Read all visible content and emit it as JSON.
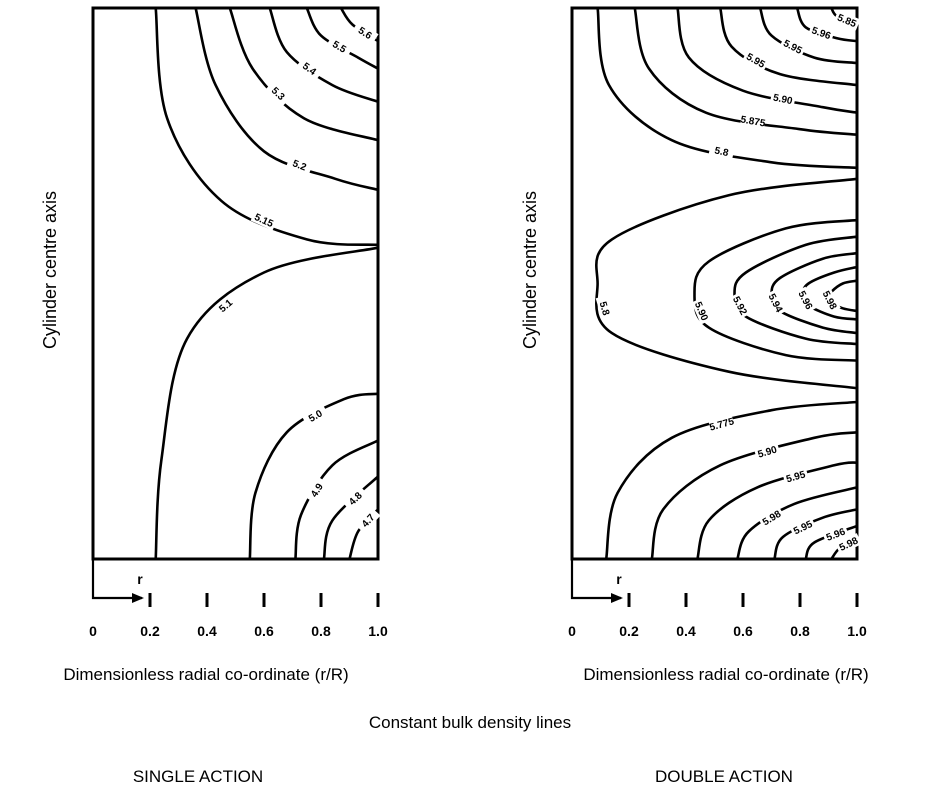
{
  "figure": {
    "caption": "Constant bulk density lines",
    "arrow_label": "r"
  },
  "chart_data": [
    {
      "type": "contour",
      "panel_title": "SINGLE ACTION",
      "ylabel": "Cylinder centre axis",
      "xlabel": "Dimensionless radial co-ordinate (r/R)",
      "xlim": [
        0,
        1.0
      ],
      "xticks": [
        "0",
        "0.2",
        "0.4",
        "0.6",
        "0.8",
        "1.0"
      ],
      "contours": [
        {
          "label": "5.15",
          "pts": [
            [
              0.22,
              1.0
            ],
            [
              0.26,
              0.8
            ],
            [
              0.45,
              0.65
            ],
            [
              0.75,
              0.58
            ],
            [
              1.0,
              0.57
            ]
          ]
        },
        {
          "label": "5.2",
          "pts": [
            [
              0.36,
              1.0
            ],
            [
              0.43,
              0.86
            ],
            [
              0.6,
              0.74
            ],
            [
              0.85,
              0.69
            ],
            [
              1.0,
              0.67
            ]
          ]
        },
        {
          "label": "5.3",
          "pts": [
            [
              0.48,
              1.0
            ],
            [
              0.56,
              0.89
            ],
            [
              0.74,
              0.8
            ],
            [
              1.0,
              0.76
            ]
          ]
        },
        {
          "label": "5.4",
          "pts": [
            [
              0.62,
              1.0
            ],
            [
              0.68,
              0.92
            ],
            [
              0.84,
              0.86
            ],
            [
              1.0,
              0.83
            ]
          ]
        },
        {
          "label": "5.5",
          "pts": [
            [
              0.75,
              1.0
            ],
            [
              0.8,
              0.95
            ],
            [
              0.93,
              0.91
            ],
            [
              1.0,
              0.89
            ]
          ]
        },
        {
          "label": "5.6",
          "pts": [
            [
              0.87,
              1.0
            ],
            [
              0.91,
              0.97
            ],
            [
              1.0,
              0.94
            ]
          ]
        },
        {
          "label": "5.1",
          "pts": [
            [
              0.22,
              0.0
            ],
            [
              0.24,
              0.18
            ],
            [
              0.33,
              0.4
            ],
            [
              0.6,
              0.52
            ],
            [
              1.0,
              0.565
            ]
          ]
        },
        {
          "label": "5.0",
          "pts": [
            [
              0.55,
              0.0
            ],
            [
              0.57,
              0.12
            ],
            [
              0.68,
              0.23
            ],
            [
              0.88,
              0.29
            ],
            [
              1.0,
              0.3
            ]
          ]
        },
        {
          "label": "4.9",
          "pts": [
            [
              0.71,
              0.0
            ],
            [
              0.73,
              0.08
            ],
            [
              0.84,
              0.17
            ],
            [
              1.0,
              0.215
            ]
          ]
        },
        {
          "label": "4.8",
          "pts": [
            [
              0.81,
              0.0
            ],
            [
              0.84,
              0.07
            ],
            [
              1.0,
              0.15
            ]
          ]
        },
        {
          "label": "4.7",
          "pts": [
            [
              0.9,
              0.0
            ],
            [
              0.93,
              0.05
            ],
            [
              1.0,
              0.09
            ]
          ]
        }
      ]
    },
    {
      "type": "contour",
      "panel_title": "DOUBLE ACTION",
      "ylabel": "Cylinder centre axis",
      "xlabel": "Dimensionless radial co-ordinate (r/R)",
      "xlim": [
        0,
        1.0
      ],
      "xticks": [
        "0",
        "0.2",
        "0.4",
        "0.6",
        "0.8",
        "1.0"
      ],
      "contours": [
        {
          "label": "5.8",
          "pts": [
            [
              0.09,
              1.0
            ],
            [
              0.13,
              0.86
            ],
            [
              0.35,
              0.76
            ],
            [
              0.7,
              0.72
            ],
            [
              1.0,
              0.71
            ]
          ]
        },
        {
          "label": "5.875",
          "pts": [
            [
              0.22,
              1.0
            ],
            [
              0.27,
              0.89
            ],
            [
              0.47,
              0.81
            ],
            [
              0.8,
              0.78
            ],
            [
              1.0,
              0.77
            ]
          ]
        },
        {
          "label": "5.90",
          "pts": [
            [
              0.37,
              1.0
            ],
            [
              0.41,
              0.91
            ],
            [
              0.6,
              0.85
            ],
            [
              0.88,
              0.82
            ],
            [
              1.0,
              0.81
            ]
          ]
        },
        {
          "label": "5.95",
          "pts": [
            [
              0.52,
              1.0
            ],
            [
              0.56,
              0.93
            ],
            [
              0.73,
              0.88
            ],
            [
              1.0,
              0.86
            ]
          ]
        },
        {
          "label": "5.95",
          "pts": [
            [
              0.66,
              1.0
            ],
            [
              0.7,
              0.95
            ],
            [
              0.85,
              0.91
            ],
            [
              1.0,
              0.9
            ]
          ]
        },
        {
          "label": "5.96",
          "pts": [
            [
              0.79,
              1.0
            ],
            [
              0.82,
              0.965
            ],
            [
              0.93,
              0.945
            ],
            [
              1.0,
              0.94
            ]
          ]
        },
        {
          "label": "5.85",
          "pts": [
            [
              0.91,
              1.0
            ],
            [
              0.93,
              0.985
            ],
            [
              1.0,
              0.97
            ]
          ]
        },
        {
          "label": "5.8",
          "pts": [
            [
              1.0,
              0.69
            ],
            [
              0.55,
              0.66
            ],
            [
              0.14,
              0.58
            ],
            [
              0.09,
              0.5
            ],
            [
              0.14,
              0.41
            ],
            [
              0.55,
              0.34
            ],
            [
              1.0,
              0.31
            ]
          ]
        },
        {
          "label": "5.90",
          "pts": [
            [
              1.0,
              0.615
            ],
            [
              0.75,
              0.6
            ],
            [
              0.48,
              0.54
            ],
            [
              0.43,
              0.48
            ],
            [
              0.48,
              0.42
            ],
            [
              0.75,
              0.37
            ],
            [
              1.0,
              0.36
            ]
          ]
        },
        {
          "label": "5.92",
          "pts": [
            [
              1.0,
              0.585
            ],
            [
              0.82,
              0.57
            ],
            [
              0.61,
              0.52
            ],
            [
              0.57,
              0.48
            ],
            [
              0.61,
              0.44
            ],
            [
              0.82,
              0.4
            ],
            [
              1.0,
              0.39
            ]
          ]
        },
        {
          "label": "5.94",
          "pts": [
            [
              1.0,
              0.555
            ],
            [
              0.88,
              0.545
            ],
            [
              0.73,
              0.51
            ],
            [
              0.7,
              0.48
            ],
            [
              0.73,
              0.45
            ],
            [
              0.88,
              0.42
            ],
            [
              1.0,
              0.41
            ]
          ]
        },
        {
          "label": "5.96",
          "pts": [
            [
              1.0,
              0.53
            ],
            [
              0.92,
              0.52
            ],
            [
              0.83,
              0.5
            ],
            [
              0.81,
              0.48
            ],
            [
              0.83,
              0.46
            ],
            [
              0.92,
              0.44
            ],
            [
              1.0,
              0.435
            ]
          ]
        },
        {
          "label": "5.98",
          "pts": [
            [
              1.0,
              0.505
            ],
            [
              0.95,
              0.5
            ],
            [
              0.91,
              0.485
            ],
            [
              0.9,
              0.475
            ],
            [
              0.91,
              0.465
            ],
            [
              0.95,
              0.455
            ],
            [
              1.0,
              0.45
            ]
          ]
        },
        {
          "label": "5.775",
          "pts": [
            [
              0.12,
              0.0
            ],
            [
              0.16,
              0.12
            ],
            [
              0.35,
              0.22
            ],
            [
              0.7,
              0.27
            ],
            [
              1.0,
              0.285
            ]
          ]
        },
        {
          "label": "5.90",
          "pts": [
            [
              0.28,
              0.0
            ],
            [
              0.32,
              0.09
            ],
            [
              0.52,
              0.17
            ],
            [
              0.85,
              0.22
            ],
            [
              1.0,
              0.23
            ]
          ]
        },
        {
          "label": "5.95",
          "pts": [
            [
              0.44,
              0.0
            ],
            [
              0.48,
              0.07
            ],
            [
              0.65,
              0.13
            ],
            [
              0.92,
              0.17
            ],
            [
              1.0,
              0.175
            ]
          ]
        },
        {
          "label": "5.98",
          "pts": [
            [
              0.58,
              0.0
            ],
            [
              0.62,
              0.05
            ],
            [
              0.78,
              0.1
            ],
            [
              1.0,
              0.13
            ]
          ]
        },
        {
          "label": "5.95",
          "pts": [
            [
              0.71,
              0.0
            ],
            [
              0.74,
              0.04
            ],
            [
              0.88,
              0.075
            ],
            [
              1.0,
              0.09
            ]
          ]
        },
        {
          "label": "5.96",
          "pts": [
            [
              0.82,
              0.0
            ],
            [
              0.85,
              0.03
            ],
            [
              1.0,
              0.06
            ]
          ]
        },
        {
          "label": "5.98",
          "pts": [
            [
              0.91,
              0.0
            ],
            [
              0.94,
              0.02
            ],
            [
              1.0,
              0.035
            ]
          ]
        }
      ]
    }
  ]
}
